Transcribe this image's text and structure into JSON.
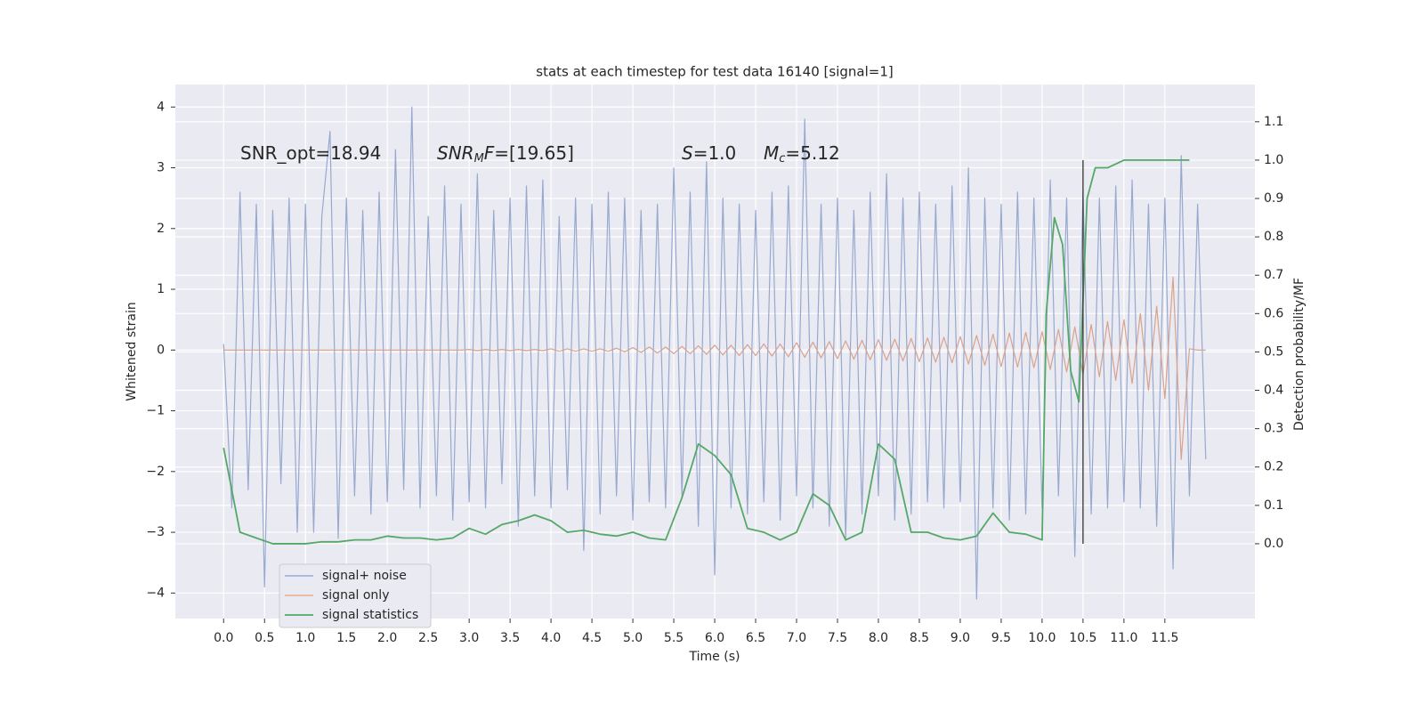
{
  "chart_data": {
    "type": "line",
    "title": "stats at each timestep for test data 16140 [signal=1]",
    "xlabel": "Time (s)",
    "ylabel": "Whitened strain",
    "y2label": "Detection probability/MF",
    "grid": true,
    "legend": "lower left",
    "xlim": [
      -0.59,
      12.6
    ],
    "ylim": [
      -4.42,
      4.37
    ],
    "y2lim": [
      -0.195,
      1.197
    ],
    "xticks": [
      {
        "value": 0,
        "label": "0.0"
      },
      {
        "value": 0.5,
        "label": "0.5"
      },
      {
        "value": 1,
        "label": "1.0"
      },
      {
        "value": 1.5,
        "label": "1.5"
      },
      {
        "value": 2,
        "label": "2.0"
      },
      {
        "value": 2.5,
        "label": "2.5"
      },
      {
        "value": 3,
        "label": "3.0"
      },
      {
        "value": 3.5,
        "label": "3.5"
      },
      {
        "value": 4,
        "label": "4.0"
      },
      {
        "value": 4.5,
        "label": "4.5"
      },
      {
        "value": 5,
        "label": "5.0"
      },
      {
        "value": 5.5,
        "label": "5.5"
      },
      {
        "value": 6,
        "label": "6.0"
      },
      {
        "value": 6.5,
        "label": "6.5"
      },
      {
        "value": 7,
        "label": "7.0"
      },
      {
        "value": 7.5,
        "label": "7.5"
      },
      {
        "value": 8,
        "label": "8.0"
      },
      {
        "value": 8.5,
        "label": "8.5"
      },
      {
        "value": 9,
        "label": "9.0"
      },
      {
        "value": 9.5,
        "label": "9.5"
      },
      {
        "value": 10,
        "label": "10.0"
      },
      {
        "value": 10.5,
        "label": "10.5"
      },
      {
        "value": 11,
        "label": "11.0"
      },
      {
        "value": 11.5,
        "label": "11.5"
      }
    ],
    "yticks": [
      {
        "value": -4,
        "label": "−4"
      },
      {
        "value": -3,
        "label": "−3"
      },
      {
        "value": -2,
        "label": "−2"
      },
      {
        "value": -1,
        "label": "−1"
      },
      0,
      1,
      2,
      3,
      4
    ],
    "y2ticks": [
      {
        "value": 0,
        "label": "0.0"
      },
      {
        "value": 0.1,
        "label": "0.1"
      },
      {
        "value": 0.2,
        "label": "0.2"
      },
      {
        "value": 0.3,
        "label": "0.3"
      },
      {
        "value": 0.4,
        "label": "0.4"
      },
      {
        "value": 0.5,
        "label": "0.5"
      },
      {
        "value": 0.6,
        "label": "0.6"
      },
      {
        "value": 0.7,
        "label": "0.7"
      },
      {
        "value": 0.8,
        "label": "0.8"
      },
      {
        "value": 0.9,
        "label": "0.9"
      },
      {
        "value": 1,
        "label": "1.0"
      },
      {
        "value": 1.1,
        "label": "1.1"
      }
    ],
    "x": [
      0,
      0.1,
      0.2,
      0.3,
      0.4,
      0.5,
      0.6,
      0.7,
      0.8,
      0.9,
      1,
      1.1,
      1.2,
      1.3,
      1.4,
      1.5,
      1.6,
      1.7,
      1.8,
      1.9,
      2,
      2.1,
      2.2,
      2.3,
      2.4,
      2.5,
      2.6,
      2.7,
      2.8,
      2.9,
      3,
      3.1,
      3.2,
      3.3,
      3.4,
      3.5,
      3.6,
      3.7,
      3.8,
      3.9,
      4,
      4.1,
      4.2,
      4.3,
      4.4,
      4.5,
      4.6,
      4.7,
      4.8,
      4.9,
      5,
      5.1,
      5.2,
      5.3,
      5.4,
      5.5,
      5.6,
      5.7,
      5.8,
      5.9,
      6,
      6.1,
      6.2,
      6.3,
      6.4,
      6.5,
      6.6,
      6.7,
      6.8,
      6.9,
      7,
      7.1,
      7.2,
      7.3,
      7.4,
      7.5,
      7.6,
      7.7,
      7.8,
      7.9,
      8,
      8.1,
      8.2,
      8.3,
      8.4,
      8.5,
      8.6,
      8.7,
      8.8,
      8.9,
      9,
      9.1,
      9.2,
      9.3,
      9.4,
      9.5,
      9.6,
      9.7,
      9.8,
      9.9,
      10,
      10.1,
      10.2,
      10.3,
      10.4,
      10.5,
      10.6,
      10.7,
      10.8,
      10.9,
      11,
      11.1,
      11.2,
      11.3,
      11.4,
      11.5,
      11.6,
      11.7,
      11.8,
      11.9,
      12
    ],
    "series": [
      {
        "name": "signal+ noise",
        "color": "#97a9cf",
        "legend_color": "#a5b5d7",
        "values": [
          0.1,
          -2.6,
          2.6,
          -2.3,
          2.4,
          -3.9,
          2.3,
          -2.2,
          2.5,
          -3.0,
          2.4,
          -3.0,
          2.2,
          3.6,
          -3.1,
          2.5,
          -2.4,
          2.3,
          -2.7,
          2.6,
          -2.5,
          3.3,
          -2.3,
          4.0,
          -2.6,
          2.2,
          -2.4,
          2.7,
          -2.8,
          2.4,
          -2.5,
          2.9,
          -2.6,
          2.3,
          -2.2,
          2.5,
          -2.9,
          2.7,
          -2.4,
          2.8,
          -2.6,
          2.2,
          -2.3,
          2.5,
          -3.3,
          2.4,
          -2.7,
          2.6,
          -2.4,
          2.5,
          -2.8,
          2.3,
          -2.5,
          2.4,
          -2.6,
          3.0,
          -2.4,
          2.6,
          -2.9,
          3.1,
          -3.7,
          2.5,
          -2.6,
          2.4,
          -2.7,
          2.3,
          -2.5,
          2.6,
          -2.8,
          2.7,
          -2.4,
          3.8,
          -2.6,
          2.4,
          -2.9,
          2.5,
          -3.1,
          2.3,
          -2.7,
          2.6,
          -2.4,
          2.9,
          -2.8,
          2.5,
          -2.7,
          2.6,
          -2.5,
          2.4,
          -2.6,
          2.7,
          -2.5,
          3.0,
          -4.1,
          2.5,
          -2.6,
          2.4,
          -2.8,
          2.6,
          -2.7,
          2.5,
          -2.6,
          2.8,
          -2.4,
          2.5,
          -3.4,
          2.6,
          -2.7,
          2.5,
          -2.6,
          2.7,
          -2.5,
          2.8,
          -2.6,
          2.4,
          -2.9,
          2.5,
          -3.6,
          3.2,
          -2.4,
          2.4,
          -1.8
        ]
      },
      {
        "name": "signal only",
        "color": "#d9a28c",
        "legend_color": "#e8b49a",
        "values": [
          0,
          0,
          0,
          0,
          0,
          0,
          0,
          0,
          0,
          0,
          0,
          0,
          0,
          0,
          0,
          0,
          0,
          0,
          0,
          0,
          0,
          0,
          0,
          0,
          0,
          0,
          0,
          0,
          0,
          0,
          0.01,
          -0.01,
          0.01,
          -0.01,
          0.01,
          -0.01,
          0.01,
          -0.01,
          0.01,
          -0.01,
          0.02,
          -0.02,
          0.02,
          -0.02,
          0.02,
          -0.02,
          0.02,
          -0.02,
          0.03,
          -0.03,
          0.04,
          -0.04,
          0.05,
          -0.05,
          0.05,
          -0.06,
          0.06,
          -0.06,
          0.07,
          -0.07,
          0.08,
          -0.08,
          0.08,
          -0.09,
          0.09,
          -0.09,
          0.1,
          -0.1,
          0.1,
          -0.11,
          0.12,
          -0.12,
          0.13,
          -0.13,
          0.14,
          -0.14,
          0.15,
          -0.15,
          0.16,
          -0.16,
          0.17,
          -0.17,
          0.18,
          -0.18,
          0.19,
          -0.19,
          0.2,
          -0.2,
          0.21,
          -0.21,
          0.22,
          -0.23,
          0.24,
          -0.25,
          0.26,
          -0.27,
          0.28,
          -0.28,
          0.29,
          -0.29,
          0.3,
          -0.32,
          0.34,
          -0.36,
          0.38,
          -0.4,
          0.42,
          -0.44,
          0.47,
          -0.5,
          0.5,
          -0.55,
          0.6,
          -0.66,
          0.72,
          -0.8,
          1.2,
          -1.8,
          0.02,
          0,
          0
        ]
      },
      {
        "name": "signal statistics",
        "color": "#55a868",
        "axis": "y2",
        "x": [
          0,
          0.2,
          0.4,
          0.6,
          0.8,
          1,
          1.2,
          1.4,
          1.6,
          1.8,
          2,
          2.2,
          2.4,
          2.6,
          2.8,
          3,
          3.2,
          3.4,
          3.6,
          3.8,
          4,
          4.2,
          4.4,
          4.6,
          4.8,
          5,
          5.2,
          5.4,
          5.6,
          5.8,
          6,
          6.2,
          6.4,
          6.6,
          6.8,
          7,
          7.2,
          7.4,
          7.6,
          7.8,
          8,
          8.2,
          8.4,
          8.6,
          8.8,
          9,
          9.2,
          9.4,
          9.6,
          9.8,
          10,
          10.05,
          10.15,
          10.25,
          10.35,
          10.45,
          10.55,
          10.65,
          10.8,
          11,
          11.2,
          11.6,
          11.8
        ],
        "values": [
          0.25,
          0.03,
          0.015,
          0.0,
          0.0,
          0.0,
          0.005,
          0.005,
          0.01,
          0.01,
          0.02,
          0.015,
          0.015,
          0.01,
          0.015,
          0.04,
          0.025,
          0.05,
          0.06,
          0.075,
          0.06,
          0.03,
          0.035,
          0.025,
          0.02,
          0.03,
          0.015,
          0.01,
          0.12,
          0.26,
          0.23,
          0.18,
          0.04,
          0.03,
          0.01,
          0.03,
          0.13,
          0.1,
          0.01,
          0.03,
          0.26,
          0.22,
          0.03,
          0.03,
          0.015,
          0.01,
          0.02,
          0.08,
          0.03,
          0.025,
          0.01,
          0.6,
          0.85,
          0.78,
          0.45,
          0.37,
          0.9,
          0.98,
          0.98,
          1.0,
          1.0,
          1.0,
          1.0
        ]
      }
    ],
    "vline": {
      "x": 10.5,
      "from": 0,
      "to": 1.0,
      "color": "#333333"
    },
    "annotations": [
      {
        "text": "SNR_opt=18.94"
      },
      {
        "base": "SNR",
        "sub": "M",
        "mid": "F",
        "after": "=[19.65]"
      },
      {
        "base": "S",
        "after": "=1.0"
      },
      {
        "base": "M",
        "sub": "c",
        "after": "=5.12"
      }
    ]
  }
}
